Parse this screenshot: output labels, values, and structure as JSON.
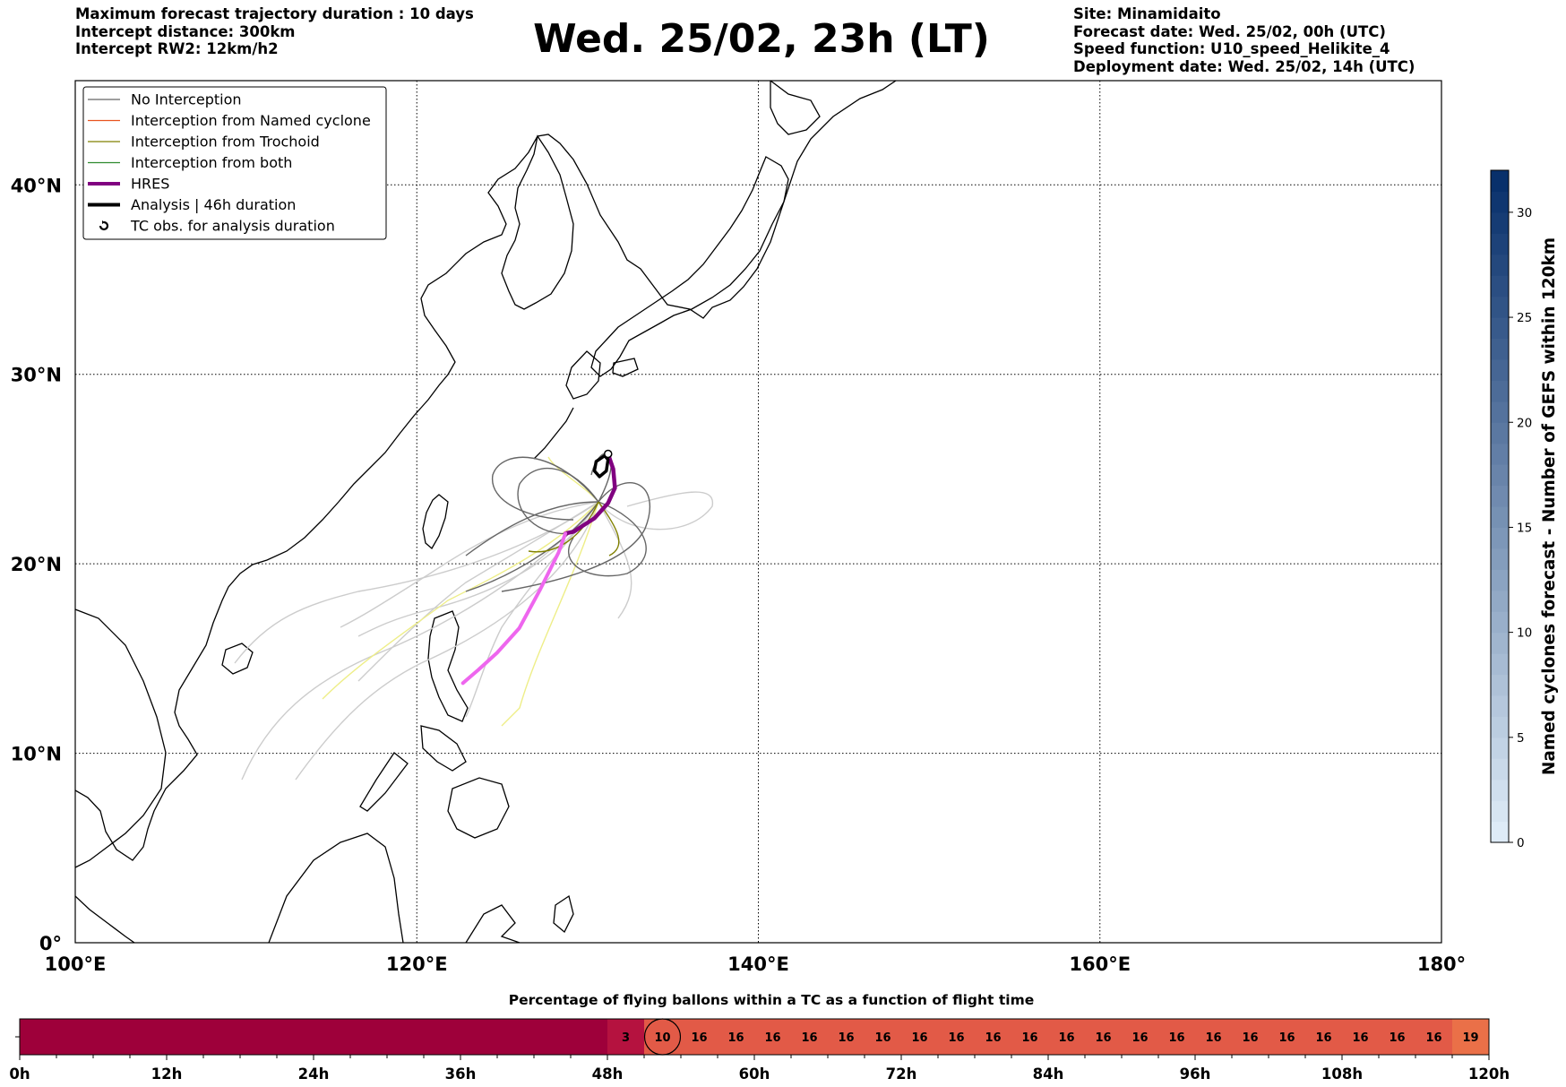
{
  "header": {
    "left": {
      "max_duration": "Maximum forecast trajectory duration : 10 days",
      "intercept_distance": "Intercept distance: 300km",
      "intercept_rw2": "Intercept RW2: 12km/h2"
    },
    "title": "Wed. 25/02, 23h (LT)",
    "right": {
      "site": "Site: Minamidaito",
      "forecast_date": "Forecast date: Wed. 25/02, 00h (UTC)",
      "speed_function": "Speed function: U10_speed_Helikite_4",
      "deployment_date": "Deployment date: Wed. 25/02, 14h (UTC)"
    }
  },
  "legend": {
    "items": [
      {
        "label": "No Interception",
        "color": "#666666",
        "style": "thin"
      },
      {
        "label": "Interception from Named cyclone",
        "color": "#e8531f",
        "style": "thin"
      },
      {
        "label": "Interception from Trochoid",
        "color": "#808000",
        "style": "thin"
      },
      {
        "label": "Interception from both",
        "color": "#2e8b2e",
        "style": "thin"
      },
      {
        "label": "HRES",
        "color": "#800080",
        "style": "thick"
      },
      {
        "label": "Analysis | 46h duration",
        "color": "#000000",
        "style": "thick"
      },
      {
        "label": "TC obs. for analysis duration",
        "color": "#000000",
        "style": "marker"
      }
    ]
  },
  "map": {
    "lon_ticks": [
      "100°E",
      "120°E",
      "140°E",
      "160°E",
      "180°"
    ],
    "lat_ticks": [
      "0°",
      "10°N",
      "20°N",
      "30°N",
      "40°N"
    ],
    "extent": {
      "lon": [
        100,
        180
      ],
      "lat": [
        0,
        45.5
      ]
    },
    "colors": {
      "coast": "#000000",
      "hres": "#800080",
      "hres_late": "#ee66ee",
      "no_interception": "#666666",
      "trochoid": "#808000",
      "light_ensemble": "#cccccc",
      "yellow": "#eeee88"
    },
    "site": {
      "name": "Minamidaito",
      "lon": 131.2,
      "lat": 25.8
    },
    "hres_track": [
      [
        131.2,
        25.8
      ],
      [
        131.5,
        25.0
      ],
      [
        131.6,
        24.0
      ],
      [
        131.2,
        23.2
      ],
      [
        130.4,
        22.4
      ],
      [
        129.7,
        22.0
      ],
      [
        129.2,
        21.7
      ],
      [
        128.7,
        21.6
      ],
      [
        128.3,
        20.6
      ],
      [
        127.2,
        18.6
      ],
      [
        126.0,
        16.6
      ],
      [
        124.7,
        15.3
      ],
      [
        123.6,
        14.4
      ],
      [
        122.7,
        13.7
      ]
    ],
    "analysis_track": [
      [
        131.0,
        25.7
      ],
      [
        130.5,
        25.4
      ],
      [
        130.4,
        24.9
      ],
      [
        130.7,
        24.6
      ],
      [
        131.1,
        24.9
      ],
      [
        131.2,
        25.5
      ],
      [
        131.0,
        25.7
      ]
    ]
  },
  "colorbar": {
    "label": "Named cyclones forecast - Number of GEFS within 120km",
    "ticks": [
      "0",
      "5",
      "10",
      "15",
      "20",
      "25",
      "30"
    ],
    "max": 32,
    "colors": [
      "#deebf7",
      "#08306b"
    ]
  },
  "timeline": {
    "title": "Percentage of flying ballons within a TC as a function of flight time",
    "time_labels": [
      "0h",
      "12h",
      "24h",
      "36h",
      "48h",
      "60h",
      "72h",
      "84h",
      "96h",
      "108h",
      "120h"
    ],
    "cells": [
      "3",
      "10",
      "16",
      "16",
      "16",
      "16",
      "16",
      "16",
      "16",
      "16",
      "16",
      "16",
      "16",
      "16",
      "16",
      "16",
      "16",
      "16",
      "16",
      "16",
      "16",
      "16",
      "16",
      "19"
    ],
    "circled_cell": 1,
    "start_hour": 48,
    "cell_hours": 3,
    "colors": {
      "empty": "#9e003a",
      "low": "#b5123f",
      "mid": "#e25a47",
      "high": "#ea7048"
    }
  }
}
